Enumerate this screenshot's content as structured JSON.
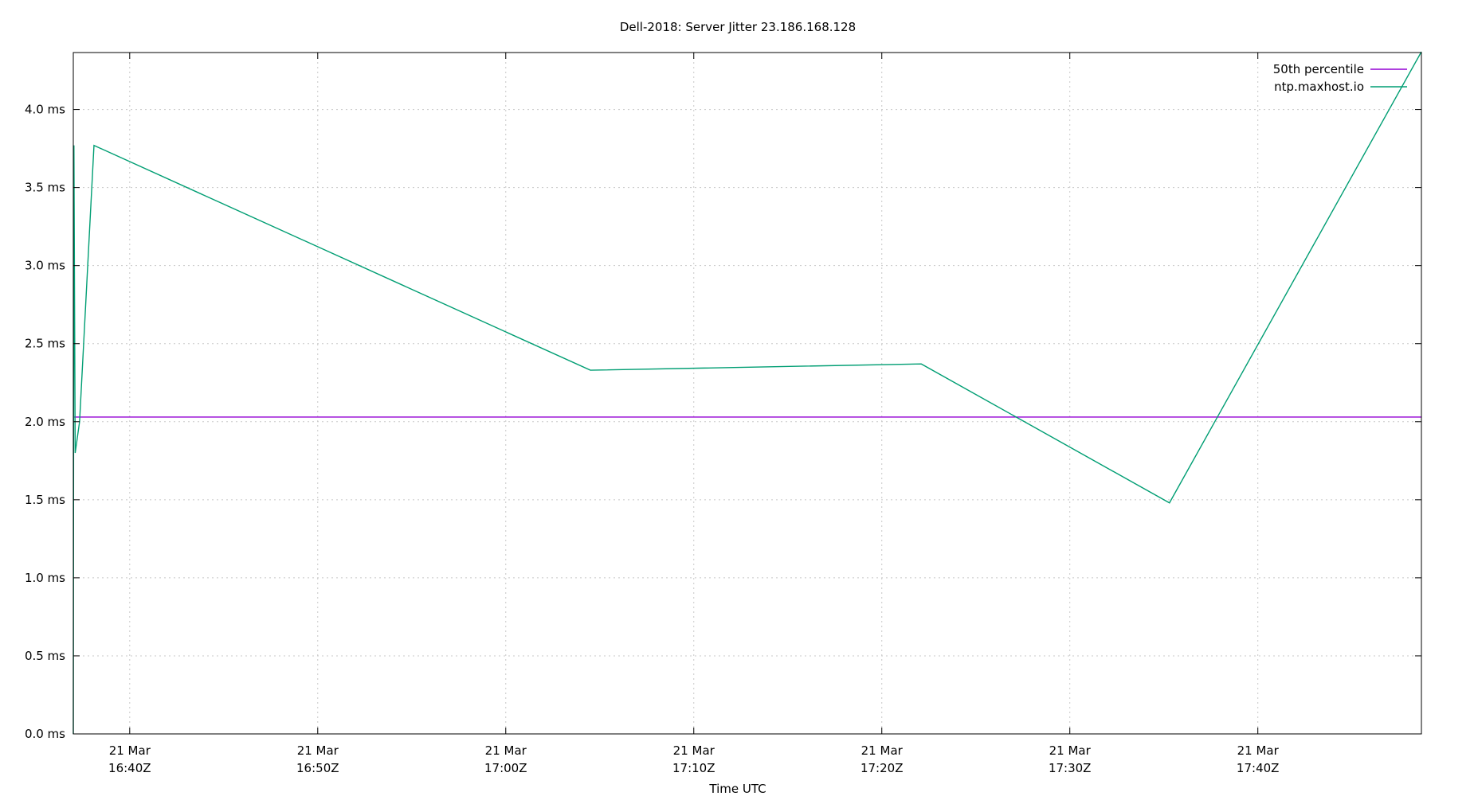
{
  "chart_data": {
    "type": "line",
    "title": "Dell-2018: Server Jitter 23.186.168.128",
    "xlabel": "Time UTC",
    "ylabel": "",
    "ylim": [
      0,
      4.365
    ],
    "xlim": [
      "2023-03-21T16:37:00Z",
      "2023-03-21T17:48:42Z"
    ],
    "grid": true,
    "legend_position": "top-right",
    "y_ticks": [
      {
        "value": 0.0,
        "label": "0.0 ms"
      },
      {
        "value": 0.5,
        "label": "0.5 ms"
      },
      {
        "value": 1.0,
        "label": "1.0 ms"
      },
      {
        "value": 1.5,
        "label": "1.5 ms"
      },
      {
        "value": 2.0,
        "label": "2.0 ms"
      },
      {
        "value": 2.5,
        "label": "2.5 ms"
      },
      {
        "value": 3.0,
        "label": "3.0 ms"
      },
      {
        "value": 3.5,
        "label": "3.5 ms"
      },
      {
        "value": 4.0,
        "label": "4.0 ms"
      }
    ],
    "x_ticks": [
      {
        "value": "2023-03-21T16:40:00Z",
        "line1": "21 Mar",
        "line2": "16:40Z"
      },
      {
        "value": "2023-03-21T16:50:00Z",
        "line1": "21 Mar",
        "line2": "16:50Z"
      },
      {
        "value": "2023-03-21T17:00:00Z",
        "line1": "21 Mar",
        "line2": "17:00Z"
      },
      {
        "value": "2023-03-21T17:10:00Z",
        "line1": "21 Mar",
        "line2": "17:10Z"
      },
      {
        "value": "2023-03-21T17:20:00Z",
        "line1": "21 Mar",
        "line2": "17:20Z"
      },
      {
        "value": "2023-03-21T17:30:00Z",
        "line1": "21 Mar",
        "line2": "17:30Z"
      },
      {
        "value": "2023-03-21T17:40:00Z",
        "line1": "21 Mar",
        "line2": "17:40Z"
      }
    ],
    "series": [
      {
        "name": "50th percentile",
        "color": "#9400d3",
        "points": [
          {
            "x": "2023-03-21T16:37:00Z",
            "y": 2.03
          },
          {
            "x": "2023-03-21T17:48:42Z",
            "y": 2.03
          }
        ]
      },
      {
        "name": "ntp.maxhost.io",
        "color": "#009e73",
        "points": [
          {
            "x": "2023-03-21T16:37:00Z",
            "y": 0.0
          },
          {
            "x": "2023-03-21T16:37:02Z",
            "y": 3.77
          },
          {
            "x": "2023-03-21T16:37:06Z",
            "y": 1.8
          },
          {
            "x": "2023-03-21T16:37:20Z",
            "y": 2.0
          },
          {
            "x": "2023-03-21T16:38:06Z",
            "y": 3.77
          },
          {
            "x": "2023-03-21T17:04:30Z",
            "y": 2.33
          },
          {
            "x": "2023-03-21T17:22:06Z",
            "y": 2.37
          },
          {
            "x": "2023-03-21T17:35:18Z",
            "y": 1.48
          },
          {
            "x": "2023-03-21T17:48:42Z",
            "y": 4.37
          }
        ]
      }
    ]
  }
}
